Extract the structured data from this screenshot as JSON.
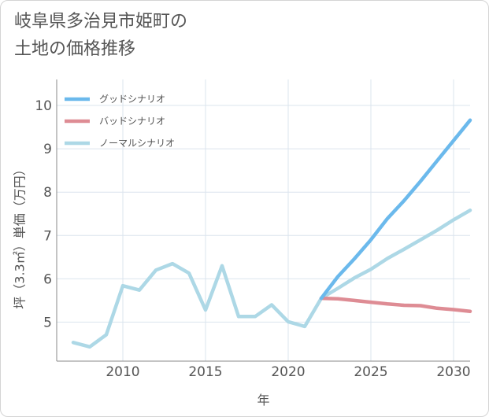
{
  "title": {
    "line1": "岐阜県多治見市姫町の",
    "line2": "土地の価格推移"
  },
  "chart_data": {
    "type": "line",
    "xlabel": "年",
    "ylabel": "坪（3.3㎡）単価（万円）",
    "xlim": [
      2006,
      2031
    ],
    "ylim": [
      4.1,
      10.6
    ],
    "x_ticks": [
      2010,
      2015,
      2020,
      2025,
      2030
    ],
    "y_ticks": [
      5,
      6,
      7,
      8,
      9,
      10
    ],
    "grid": true,
    "legend_position": "top-left",
    "historical": {
      "color": "#add8e6",
      "x": [
        2007,
        2008,
        2009,
        2010,
        2011,
        2012,
        2013,
        2014,
        2015,
        2016,
        2017,
        2018,
        2019,
        2020,
        2021,
        2022
      ],
      "values": [
        4.53,
        4.43,
        4.71,
        5.84,
        5.74,
        6.2,
        6.35,
        6.13,
        5.28,
        6.3,
        5.13,
        5.13,
        5.4,
        5.01,
        4.9,
        5.55
      ]
    },
    "series": [
      {
        "name": "グッドシナリオ",
        "color": "#6bb9ec",
        "x": [
          2022,
          2023,
          2024,
          2025,
          2026,
          2027,
          2028,
          2029,
          2030,
          2031
        ],
        "values": [
          5.55,
          6.05,
          6.46,
          6.9,
          7.39,
          7.8,
          8.25,
          8.72,
          9.19,
          9.66
        ]
      },
      {
        "name": "バッドシナリオ",
        "color": "#de8c94",
        "x": [
          2022,
          2023,
          2024,
          2025,
          2026,
          2027,
          2028,
          2029,
          2030,
          2031
        ],
        "values": [
          5.55,
          5.54,
          5.5,
          5.46,
          5.42,
          5.39,
          5.38,
          5.32,
          5.29,
          5.25
        ]
      },
      {
        "name": "ノーマルシナリオ",
        "color": "#add8e6",
        "x": [
          2022,
          2023,
          2024,
          2025,
          2026,
          2027,
          2028,
          2029,
          2030,
          2031
        ],
        "values": [
          5.55,
          5.78,
          6.02,
          6.22,
          6.47,
          6.68,
          6.9,
          7.12,
          7.36,
          7.58
        ]
      }
    ]
  }
}
